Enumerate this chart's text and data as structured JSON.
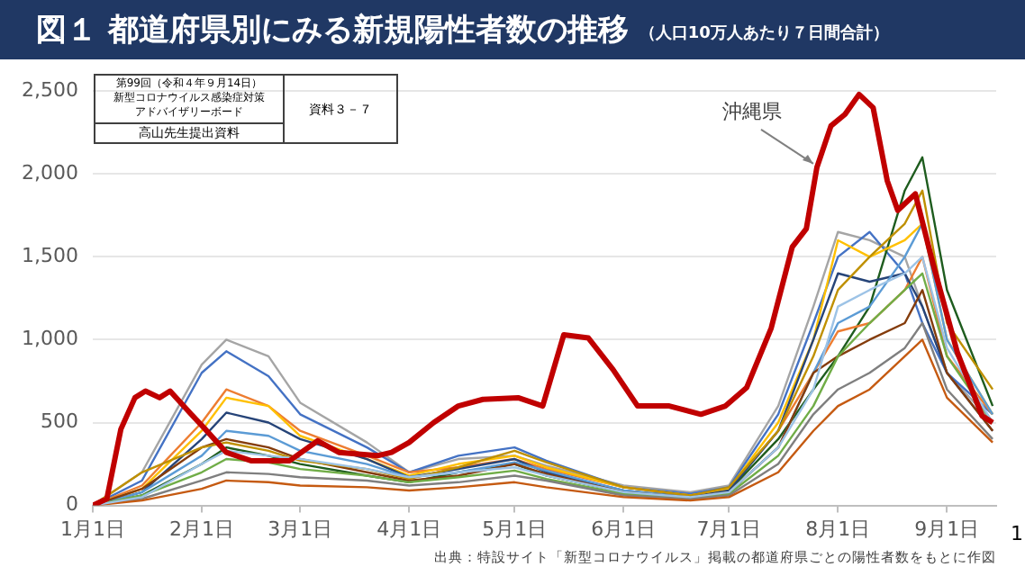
{
  "chart_data": {
    "type": "line",
    "title": "図１ 都道府県別にみる新規陽性者数の推移",
    "subtitle": "（人口10万人あたり７日間合計）",
    "x": [
      "--01-01",
      "--01-15",
      "--02-01",
      "--02-08",
      "--02-20",
      "--03-01",
      "--03-20",
      "--04-01",
      "--04-15",
      "--05-01",
      "--05-10",
      "--06-01",
      "--06-20",
      "--07-01",
      "--07-15",
      "--07-25",
      "--08-01",
      "--08-10",
      "--08-20",
      "--08-25",
      "--09-01",
      "--09-14"
    ],
    "series": [
      {
        "color": "#a5a5a5",
        "values": [
          0,
          200,
          850,
          1000,
          900,
          620,
          380,
          200,
          280,
          300,
          240,
          120,
          80,
          120,
          600,
          1200,
          1650,
          1600,
          1500,
          1200,
          800,
          500
        ]
      },
      {
        "color": "#4472c4",
        "values": [
          0,
          150,
          800,
          930,
          780,
          550,
          350,
          200,
          300,
          350,
          270,
          110,
          70,
          110,
          550,
          1100,
          1500,
          1650,
          1400,
          1100,
          800,
          550
        ]
      },
      {
        "color": "#1e5c1e",
        "values": [
          0,
          60,
          250,
          350,
          300,
          250,
          180,
          140,
          200,
          250,
          180,
          80,
          60,
          90,
          400,
          700,
          900,
          1200,
          1900,
          2100,
          1300,
          600
        ]
      },
      {
        "color": "#ed7d31",
        "values": [
          0,
          120,
          500,
          700,
          600,
          450,
          300,
          200,
          230,
          280,
          220,
          110,
          60,
          100,
          450,
          800,
          1050,
          1100,
          1300,
          1500,
          900,
          550
        ]
      },
      {
        "color": "#ffc000",
        "values": [
          0,
          100,
          450,
          650,
          600,
          420,
          280,
          180,
          250,
          300,
          230,
          110,
          60,
          100,
          500,
          1000,
          1600,
          1500,
          1600,
          1700,
          1000,
          550
        ]
      },
      {
        "color": "#264478",
        "values": [
          0,
          80,
          400,
          560,
          500,
          400,
          280,
          170,
          220,
          280,
          200,
          90,
          50,
          90,
          450,
          1000,
          1400,
          1350,
          1400,
          1200,
          800,
          450
        ]
      },
      {
        "color": "#5b9bd5",
        "values": [
          0,
          80,
          300,
          450,
          420,
          330,
          250,
          170,
          200,
          260,
          210,
          90,
          50,
          80,
          350,
          800,
          1100,
          1200,
          1500,
          1700,
          1000,
          550
        ]
      },
      {
        "color": "#843c0c",
        "values": [
          0,
          100,
          350,
          400,
          350,
          280,
          200,
          150,
          180,
          250,
          190,
          80,
          50,
          80,
          350,
          800,
          900,
          1000,
          1100,
          1300,
          800,
          450
        ]
      },
      {
        "color": "#bf9000",
        "values": [
          0,
          200,
          350,
          380,
          330,
          270,
          220,
          160,
          230,
          330,
          260,
          110,
          60,
          110,
          450,
          900,
          1300,
          1500,
          1700,
          1900,
          1100,
          700
        ]
      },
      {
        "color": "#70ad47",
        "values": [
          0,
          60,
          200,
          280,
          260,
          220,
          180,
          140,
          170,
          210,
          160,
          70,
          40,
          70,
          300,
          600,
          900,
          1100,
          1300,
          1400,
          900,
          500
        ]
      },
      {
        "color": "#7f7f7f",
        "values": [
          0,
          40,
          150,
          200,
          190,
          170,
          150,
          120,
          140,
          180,
          150,
          60,
          40,
          60,
          250,
          550,
          700,
          800,
          950,
          1100,
          700,
          400
        ]
      },
      {
        "color": "#c55a11",
        "values": [
          0,
          30,
          100,
          150,
          140,
          120,
          110,
          90,
          110,
          140,
          110,
          50,
          30,
          50,
          200,
          450,
          600,
          700,
          900,
          1000,
          650,
          380
        ]
      },
      {
        "color": "#9dc3e6",
        "values": [
          0,
          50,
          250,
          330,
          300,
          280,
          220,
          170,
          200,
          230,
          180,
          80,
          50,
          80,
          350,
          700,
          1200,
          1300,
          1400,
          1500,
          950,
          500
        ]
      },
      {
        "color": "#c00000",
        "x": [
          "--01-01",
          "--01-05",
          "--01-09",
          "--01-13",
          "--01-16",
          "--01-20",
          "--01-23",
          "--01-29",
          "--02-02",
          "--02-08",
          "--02-15",
          "--02-26",
          "--03-06",
          "--03-12",
          "--03-23",
          "--03-27",
          "--04-01",
          "--04-08",
          "--04-15",
          "--04-22",
          "--05-02",
          "--05-09",
          "--05-15",
          "--05-22",
          "--05-29",
          "--06-05",
          "--06-14",
          "--06-23",
          "--06-30",
          "--07-06",
          "--07-13",
          "--07-19",
          "--07-23",
          "--07-26",
          "--07-30",
          "--08-03",
          "--08-07",
          "--08-11",
          "--08-15",
          "--08-18",
          "--08-23",
          "--08-28",
          "--09-04",
          "--09-11",
          "--09-14"
        ],
        "values": [
          0,
          40,
          460,
          650,
          690,
          650,
          690,
          550,
          460,
          320,
          270,
          270,
          390,
          320,
          300,
          320,
          380,
          500,
          600,
          640,
          650,
          600,
          1030,
          1010,
          820,
          600,
          600,
          550,
          600,
          710,
          1070,
          1560,
          1670,
          2040,
          2290,
          2360,
          2480,
          2400,
          1960,
          1780,
          1880,
          1460,
          920,
          540,
          500
        ]
      }
    ],
    "xlim": [
      "--01-01",
      "--09-15"
    ],
    "xticks": [
      {
        "value": "--01-01",
        "label": "1月1日"
      },
      {
        "value": "--02-01",
        "label": "2月1日"
      },
      {
        "value": "--03-01",
        "label": "3月1日"
      },
      {
        "value": "--04-01",
        "label": "4月1日"
      },
      {
        "value": "--05-01",
        "label": "5月1日"
      },
      {
        "value": "--06-01",
        "label": "6月1日"
      },
      {
        "value": "--07-01",
        "label": "7月1日"
      },
      {
        "value": "--08-01",
        "label": "8月1日"
      },
      {
        "value": "--09-01",
        "label": "9月1日"
      }
    ],
    "ylim": [
      0,
      2500
    ],
    "yticks": [
      {
        "value": 0,
        "label": "0"
      },
      {
        "value": 500,
        "label": "500"
      },
      {
        "value": 1000,
        "label": "1,000"
      },
      {
        "value": 1500,
        "label": "1,500"
      },
      {
        "value": 2000,
        "label": "2,000"
      },
      {
        "value": 2500,
        "label": "2,500"
      }
    ],
    "grid": "y",
    "legend": false,
    "marker": "none",
    "line_style": "solid",
    "annotations": [
      {
        "text": "沖縄県",
        "x": "--07-26",
        "y": 2040
      },
      "第99回（令和４年９月14日）",
      "新型コロナウイルス感染症対策",
      "アドバイザリーボード",
      "資料３－７",
      "高山先生提出資料",
      "出典：特設サイト「新型コロナウイルス」掲載の都道府県ごとの陽性者数をもとに作図",
      "1"
    ]
  }
}
